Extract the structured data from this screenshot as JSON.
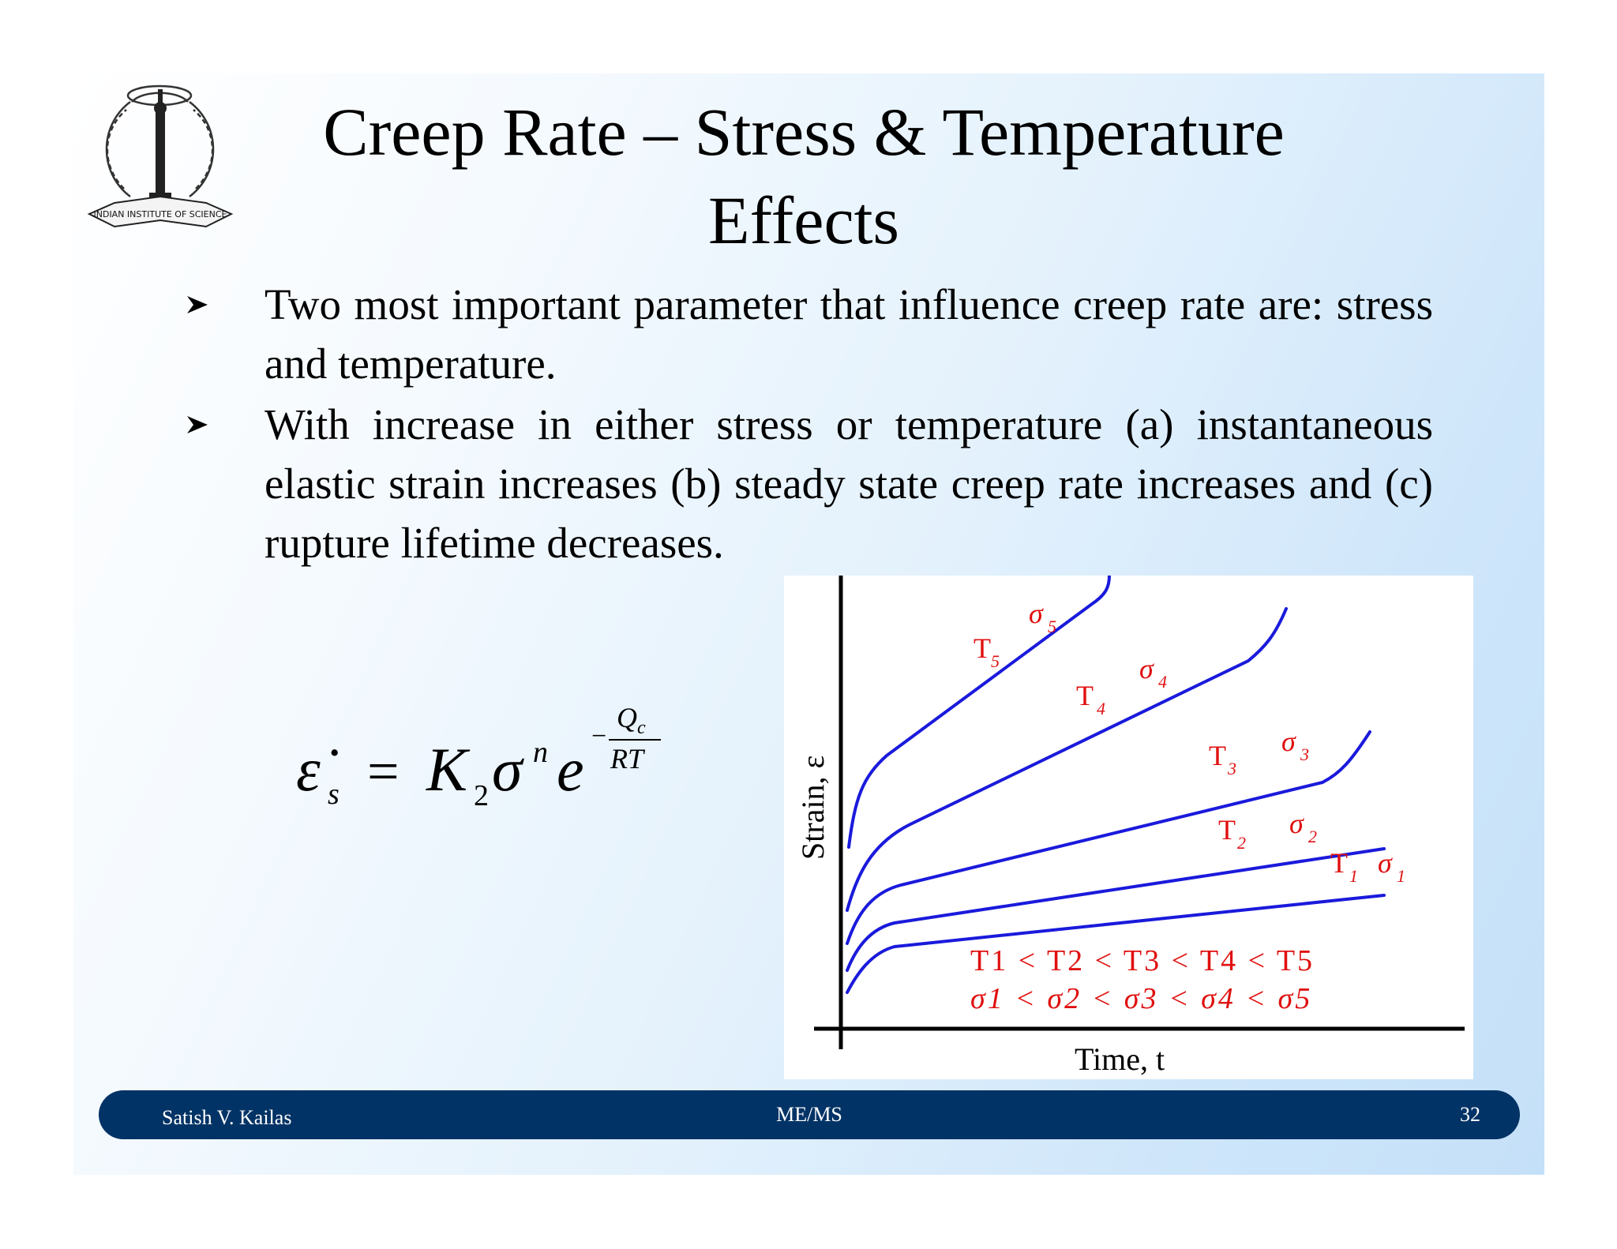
{
  "slide": {
    "title_line1": "Creep Rate – Stress & Temperature",
    "title_line2": "Effects",
    "logo_text": "INDIAN INSTITUTE OF SCIENCE",
    "bullets": [
      "Two most important parameter that influence creep rate are: stress and temperature.",
      "With increase in either stress or temperature (a) instantaneous elastic strain increases (b) steady state creep rate increases and (c) rupture lifetime decreases."
    ],
    "formula": {
      "lhs_symbol": "ε̇",
      "lhs_sub": "s",
      "equals": "=",
      "coeff": "K",
      "coeff_sub": "2",
      "sigma": "σ",
      "sigma_sup": "n",
      "exp_base": "e",
      "exp_sign": "−",
      "exp_num": "Q",
      "exp_num_sub": "c",
      "exp_den": "RT"
    },
    "graph": {
      "xlabel": "Time, t",
      "ylabel": "Strain, ε",
      "curve_labels": [
        {
          "t": "T",
          "t_sub": "5",
          "s": "σ",
          "s_sub": "5"
        },
        {
          "t": "T",
          "t_sub": "4",
          "s": "σ",
          "s_sub": "4"
        },
        {
          "t": "T",
          "t_sub": "3",
          "s": "σ",
          "s_sub": "3"
        },
        {
          "t": "T",
          "t_sub": "2",
          "s": "σ",
          "s_sub": "2"
        },
        {
          "t": "T",
          "t_sub": "1",
          "s": "σ",
          "s_sub": "1"
        }
      ],
      "relation_t": "T1 < T2 < T3 < T4 < T5",
      "relation_s": "σ1 < σ2 < σ3 < σ4 < σ5",
      "curve_color": "#1a1adc",
      "label_color": "#e01010"
    },
    "footer": {
      "author": "Satish V. Kailas",
      "course": "ME/MS",
      "page": "32"
    }
  }
}
